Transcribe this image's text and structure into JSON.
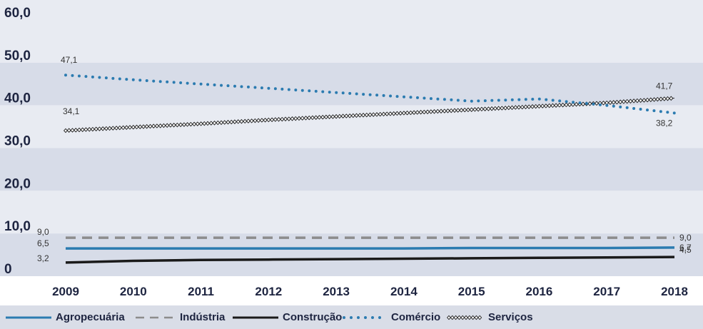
{
  "chart_data": {
    "type": "line",
    "y_ticks": [
      "60,0",
      "50,0",
      "40,0",
      "30,0",
      "20,0",
      "10,0",
      "0"
    ],
    "ylim": [
      0,
      60
    ],
    "x_ticks": [
      "2009",
      "2010",
      "2011",
      "2012",
      "2013",
      "2014",
      "2015",
      "2016",
      "2017",
      "2018"
    ],
    "x": [
      2009,
      2010,
      2011,
      2012,
      2013,
      2014,
      2015,
      2016,
      2017,
      2018
    ],
    "series": [
      {
        "name": "Agropecuária",
        "color": "#2b7bb0",
        "style": "solid",
        "values": [
          6.5,
          6.5,
          6.5,
          6.5,
          6.5,
          6.5,
          6.6,
          6.6,
          6.6,
          6.7
        ],
        "start_label": "6,5",
        "end_label": "6,7"
      },
      {
        "name": "Indústria",
        "color": "#8c8c8c",
        "style": "dashed",
        "values": [
          9.0,
          9.0,
          9.0,
          9.0,
          9.0,
          9.0,
          9.0,
          9.0,
          9.0,
          9.0
        ],
        "start_label": "9,0",
        "end_label": "9,0"
      },
      {
        "name": "Construção",
        "color": "#1a1a1a",
        "style": "solid",
        "values": [
          3.2,
          3.6,
          3.8,
          3.9,
          4.0,
          4.1,
          4.2,
          4.3,
          4.4,
          4.5
        ],
        "start_label": "3,2",
        "end_label": "4,5"
      },
      {
        "name": "Comércio",
        "color": "#2b7bb0",
        "style": "dotted",
        "values": [
          47.1,
          46.0,
          45.0,
          44.0,
          43.0,
          42.0,
          41.0,
          41.5,
          40.0,
          38.2
        ],
        "start_label": "47,1",
        "end_label": "38,2"
      },
      {
        "name": "Serviços",
        "color": "#1a1a1a",
        "style": "diamonds",
        "values": [
          34.1,
          34.9,
          35.7,
          36.6,
          37.4,
          38.2,
          39.0,
          39.8,
          40.6,
          41.7
        ],
        "start_label": "34,1",
        "end_label": "41,7"
      }
    ],
    "legend": "bottom",
    "grid": "alternating-bands"
  }
}
